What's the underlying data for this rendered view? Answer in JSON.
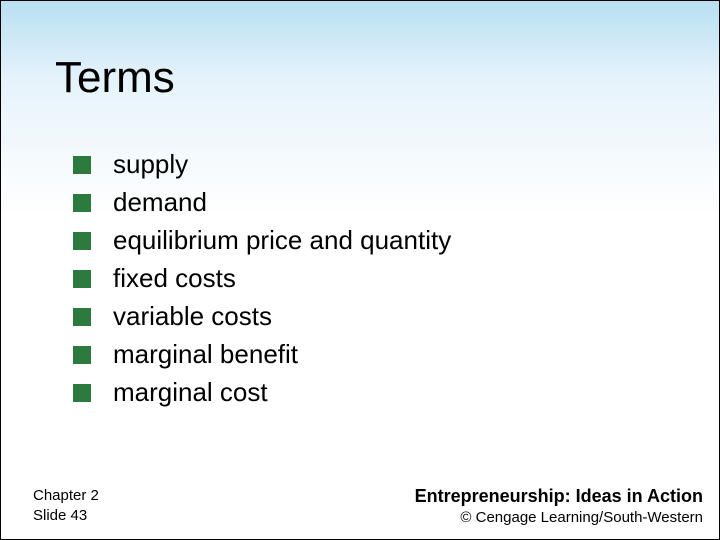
{
  "slide": {
    "title": "Terms",
    "bullets": [
      "supply",
      "demand",
      "equilibrium price and quantity",
      "fixed costs",
      "variable costs",
      "marginal benefit",
      "marginal cost"
    ],
    "bullet_color": "#2d7a3f",
    "footer": {
      "chapter": "Chapter 2",
      "slide_no": "Slide 43",
      "book_title": "Entrepreneurship: Ideas in Action",
      "copyright": "©  Cengage Learning/South-Western"
    }
  }
}
